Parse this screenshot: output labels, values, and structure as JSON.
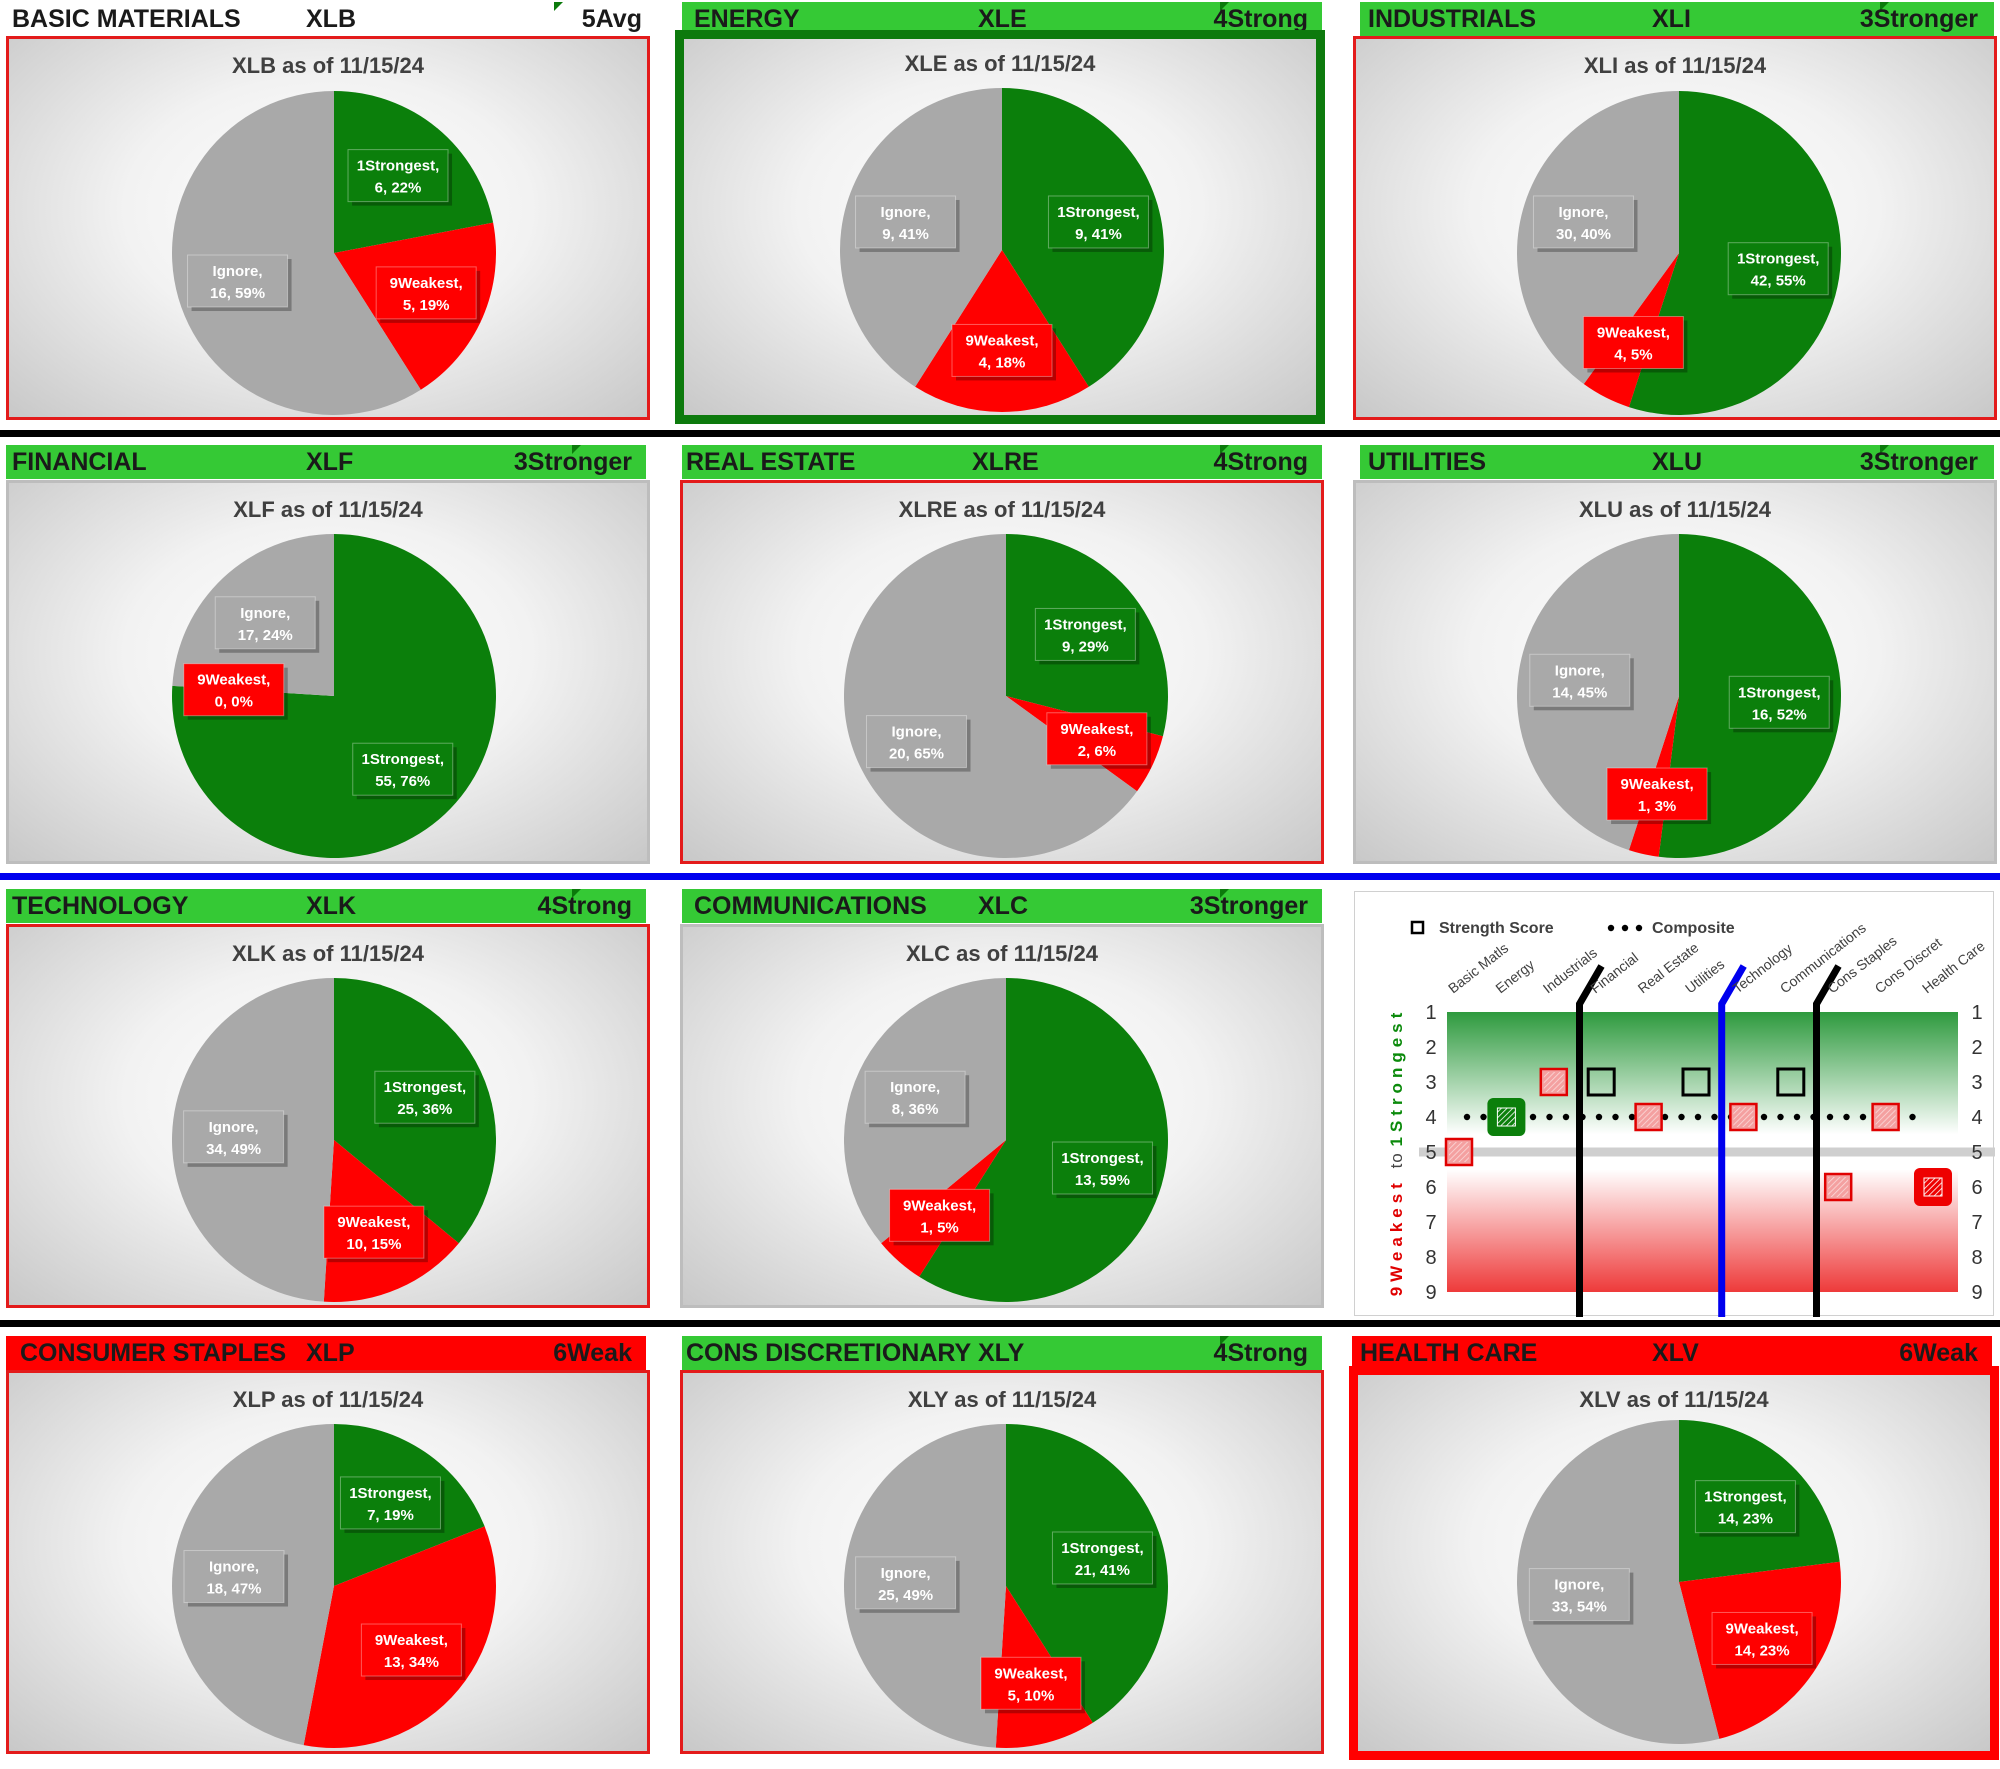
{
  "colors": {
    "strongest": "#0b7f0b",
    "weakest": "#ff0000",
    "ignore": "#a9a9a9",
    "header_green": "#35c935",
    "header_red": "#ff0000",
    "black_sep": "#000000",
    "blue_sep": "#0000ee"
  },
  "sectors": [
    {
      "name": "BASIC MATERIALS",
      "ticker": "XLB",
      "rating": "5Avg",
      "chart_title": "XLB as of 11/15/24",
      "header_style": "plain",
      "border": "red"
    },
    {
      "name": "ENERGY",
      "ticker": "XLE",
      "rating": "4Strong",
      "chart_title": "XLE as of 11/15/24",
      "header_style": "green",
      "border": "green-thick"
    },
    {
      "name": "INDUSTRIALS",
      "ticker": "XLI",
      "rating": "3Stronger",
      "chart_title": "XLI as of 11/15/24",
      "header_style": "green",
      "border": "red"
    },
    {
      "name": "FINANCIAL",
      "ticker": "XLF",
      "rating": "3Stronger",
      "chart_title": "XLF as of 11/15/24",
      "header_style": "green",
      "border": "gray"
    },
    {
      "name": "REAL ESTATE",
      "ticker": "XLRE",
      "rating": "4Strong",
      "chart_title": "XLRE as of 11/15/24",
      "header_style": "green",
      "border": "red"
    },
    {
      "name": "UTILITIES",
      "ticker": "XLU",
      "rating": "3Stronger",
      "chart_title": "XLU as of 11/15/24",
      "header_style": "green",
      "border": "gray"
    },
    {
      "name": "TECHNOLOGY",
      "ticker": "XLK",
      "rating": "4Strong",
      "chart_title": "XLK as of 11/15/24",
      "header_style": "green",
      "border": "red"
    },
    {
      "name": "COMMUNICATIONS",
      "ticker": "XLC",
      "rating": "3Stronger",
      "chart_title": "XLC as of 11/15/24",
      "header_style": "green",
      "border": "gray"
    },
    {
      "name": "CONSUMER STAPLES",
      "ticker": "XLP",
      "rating": "6Weak",
      "chart_title": "XLP as of 11/15/24",
      "header_style": "red",
      "border": "red"
    },
    {
      "name": "CONS DISCRETIONARY",
      "ticker": "XLY",
      "rating": "4Strong",
      "chart_title": "XLY as of 11/15/24",
      "header_style": "green",
      "border": "red"
    },
    {
      "name": "HEALTH CARE",
      "ticker": "XLV",
      "rating": "6Weak",
      "chart_title": "XLV as of 11/15/24",
      "header_style": "red",
      "border": "red-thick"
    }
  ],
  "chart_data": [
    {
      "type": "pie",
      "title": "XLB as of 11/15/24",
      "slices": [
        {
          "label": "1Strongest",
          "count": 6,
          "pct": "22%",
          "value": 22
        },
        {
          "label": "9Weakest",
          "count": 5,
          "pct": "19%",
          "value": 19
        },
        {
          "label": "Ignore",
          "count": 16,
          "pct": "59%",
          "value": 59
        }
      ]
    },
    {
      "type": "pie",
      "title": "XLE as of 11/15/24",
      "slices": [
        {
          "label": "1Strongest",
          "count": 9,
          "pct": "41%",
          "value": 41
        },
        {
          "label": "9Weakest",
          "count": 4,
          "pct": "18%",
          "value": 18
        },
        {
          "label": "Ignore",
          "count": 9,
          "pct": "41%",
          "value": 41
        }
      ]
    },
    {
      "type": "pie",
      "title": "XLI as of 11/15/24",
      "slices": [
        {
          "label": "1Strongest",
          "count": 42,
          "pct": "55%",
          "value": 55
        },
        {
          "label": "9Weakest",
          "count": 4,
          "pct": "5%",
          "value": 5
        },
        {
          "label": "Ignore",
          "count": 30,
          "pct": "40%",
          "value": 40
        }
      ]
    },
    {
      "type": "pie",
      "title": "XLF as of 11/15/24",
      "slices": [
        {
          "label": "1Strongest",
          "count": 55,
          "pct": "76%",
          "value": 76
        },
        {
          "label": "9Weakest",
          "count": 0,
          "pct": "0%",
          "value": 0
        },
        {
          "label": "Ignore",
          "count": 17,
          "pct": "24%",
          "value": 24
        }
      ]
    },
    {
      "type": "pie",
      "title": "XLRE as of 11/15/24",
      "slices": [
        {
          "label": "1Strongest",
          "count": 9,
          "pct": "29%",
          "value": 29
        },
        {
          "label": "9Weakest",
          "count": 2,
          "pct": "6%",
          "value": 6
        },
        {
          "label": "Ignore",
          "count": 20,
          "pct": "65%",
          "value": 65
        }
      ]
    },
    {
      "type": "pie",
      "title": "XLU as of 11/15/24",
      "slices": [
        {
          "label": "1Strongest",
          "count": 16,
          "pct": "52%",
          "value": 52
        },
        {
          "label": "9Weakest",
          "count": 1,
          "pct": "3%",
          "value": 3
        },
        {
          "label": "Ignore",
          "count": 14,
          "pct": "45%",
          "value": 45
        }
      ]
    },
    {
      "type": "pie",
      "title": "XLK as of 11/15/24",
      "slices": [
        {
          "label": "1Strongest",
          "count": 25,
          "pct": "36%",
          "value": 36
        },
        {
          "label": "9Weakest",
          "count": 10,
          "pct": "15%",
          "value": 15
        },
        {
          "label": "Ignore",
          "count": 34,
          "pct": "49%",
          "value": 49
        }
      ]
    },
    {
      "type": "pie",
      "title": "XLC as of 11/15/24",
      "slices": [
        {
          "label": "1Strongest",
          "count": 13,
          "pct": "59%",
          "value": 59
        },
        {
          "label": "9Weakest",
          "count": 1,
          "pct": "5%",
          "value": 5
        },
        {
          "label": "Ignore",
          "count": 8,
          "pct": "36%",
          "value": 36
        }
      ]
    },
    {
      "type": "pie",
      "title": "XLP as of 11/15/24",
      "slices": [
        {
          "label": "1Strongest",
          "count": 7,
          "pct": "19%",
          "value": 19
        },
        {
          "label": "9Weakest",
          "count": 13,
          "pct": "34%",
          "value": 34
        },
        {
          "label": "Ignore",
          "count": 18,
          "pct": "47%",
          "value": 47
        }
      ]
    },
    {
      "type": "pie",
      "title": "XLY as of 11/15/24",
      "slices": [
        {
          "label": "1Strongest",
          "count": 21,
          "pct": "41%",
          "value": 41
        },
        {
          "label": "9Weakest",
          "count": 5,
          "pct": "10%",
          "value": 10
        },
        {
          "label": "Ignore",
          "count": 25,
          "pct": "49%",
          "value": 49
        }
      ]
    },
    {
      "type": "pie",
      "title": "XLV as of 11/15/24",
      "slices": [
        {
          "label": "1Strongest",
          "count": 14,
          "pct": "23%",
          "value": 23
        },
        {
          "label": "9Weakest",
          "count": 14,
          "pct": "23%",
          "value": 23
        },
        {
          "label": "Ignore",
          "count": 33,
          "pct": "54%",
          "value": 54
        }
      ]
    },
    {
      "type": "scatter",
      "title": "",
      "legend": [
        "Strength Score",
        "Composite"
      ],
      "categories": [
        "Basic Matls",
        "Energy",
        "Industrials",
        "Financial",
        "Real Estate",
        "Utilities",
        "Technology",
        "Communications",
        "Cons Staples",
        "Cons Discret",
        "Health Care"
      ],
      "strength_score": [
        5,
        4,
        3,
        3,
        4,
        3,
        4,
        3,
        6,
        4,
        6
      ],
      "strength_style": [
        "red",
        "green",
        "red",
        "empty",
        "red",
        "empty",
        "red",
        "empty",
        "red",
        "red",
        "red-dark"
      ],
      "composite": 4,
      "y_ticks": [
        1,
        2,
        3,
        4,
        5,
        6,
        7,
        8,
        9
      ],
      "ylim": [
        1,
        9
      ],
      "y_axis_label_top": "1Strongest",
      "y_axis_label_mid": "to",
      "y_axis_label_bottom": "9Weakest"
    }
  ]
}
